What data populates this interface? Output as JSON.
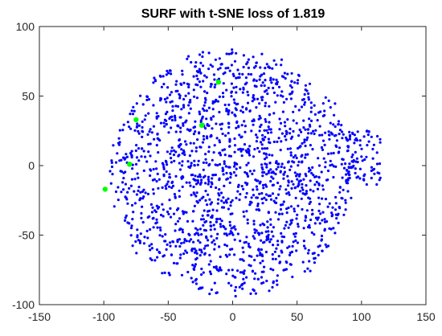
{
  "chart_data": {
    "type": "scatter",
    "title": "SURF with t-SNE loss of 1.819",
    "xlabel": "",
    "ylabel": "",
    "xlim": [
      -150,
      150
    ],
    "ylim": [
      -100,
      100
    ],
    "xticks": [
      -150,
      -100,
      -50,
      0,
      50,
      100,
      150
    ],
    "yticks": [
      -100,
      -50,
      0,
      50,
      100
    ],
    "xtick_labels": [
      "-150",
      "-100",
      "-50",
      "0",
      "50",
      "100",
      "150"
    ],
    "ytick_labels": [
      "-100",
      "-50",
      "0",
      "50",
      "100"
    ],
    "grid": false,
    "legend": "none",
    "series": [
      {
        "color": "#0000ff",
        "distribution": {
          "approx_count": 1800,
          "center": [
            0,
            -5
          ],
          "radius_x": 95,
          "radius_y": 88,
          "right_cluster": {
            "x_range": [
              85,
              115
            ],
            "y_range": [
              -15,
              25
            ]
          }
        },
        "points": []
      },
      {
        "color": "#00ff00",
        "points": [
          [
            -99,
            -17
          ],
          [
            -80,
            1
          ],
          [
            -75,
            33
          ],
          [
            -24,
            29
          ],
          [
            -11,
            60
          ]
        ]
      }
    ]
  }
}
